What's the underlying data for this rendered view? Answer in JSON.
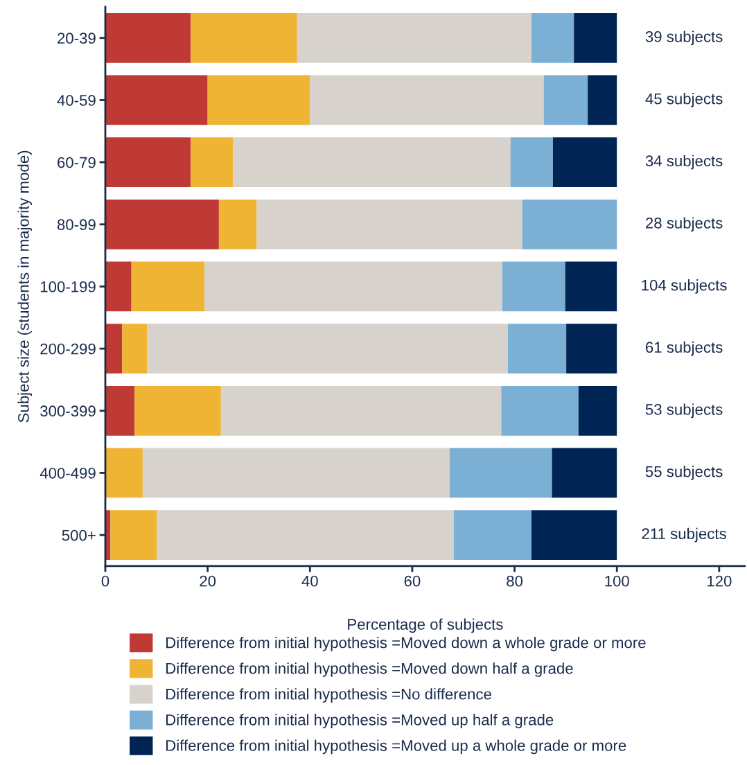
{
  "chart_data": {
    "type": "bar",
    "orientation": "horizontal",
    "stacked": true,
    "xlabel": "Percentage of subjects",
    "ylabel": "Subject size (students in majority mode)",
    "categories": [
      "20-39",
      "40-59",
      "60-79",
      "80-99",
      "100-199",
      "200-299",
      "300-399",
      "400-499",
      "500+"
    ],
    "series": [
      {
        "name": "Difference from initial hypothesis =Moved down a whole grade or more",
        "color": "#bf3a35",
        "values": [
          16.7,
          20.0,
          16.7,
          22.2,
          5.1,
          3.3,
          5.7,
          0,
          1.0
        ]
      },
      {
        "name": "Difference from initial hypothesis =Moved down half a grade",
        "color": "#f0b434",
        "values": [
          20.8,
          20.0,
          8.3,
          7.4,
          14.3,
          4.9,
          16.9,
          7.3,
          9.1
        ]
      },
      {
        "name": "Difference from initial hypothesis =No difference",
        "color": "#d7d2cc",
        "values": [
          45.8,
          45.7,
          54.2,
          51.9,
          58.2,
          70.5,
          54.8,
          60.0,
          58.0
        ]
      },
      {
        "name": "Difference from initial hypothesis =Moved up half a grade",
        "color": "#7bafd4",
        "values": [
          8.3,
          8.6,
          8.3,
          18.5,
          12.3,
          11.4,
          15.1,
          20.0,
          15.2
        ]
      },
      {
        "name": "Difference from initial hypothesis =Moved up a whole grade or more",
        "color": "#002454",
        "values": [
          8.4,
          5.7,
          12.5,
          0,
          10.1,
          9.9,
          7.5,
          12.7,
          16.7
        ]
      }
    ],
    "xlim": [
      0,
      125
    ],
    "xticks": [
      0,
      20,
      40,
      60,
      80,
      100,
      120
    ],
    "annotations": [
      "39 subjects",
      "45 subjects",
      "34 subjects",
      "28 subjects",
      "104 subjects",
      "61 subjects",
      "53 subjects",
      "55 subjects",
      "211 subjects"
    ],
    "legend": "bottom",
    "grid": false
  }
}
